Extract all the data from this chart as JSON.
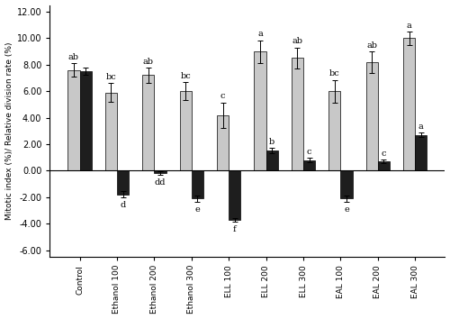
{
  "categories": [
    "Control",
    "Ethanol 100",
    "Ethanol 200",
    "Ethanol 300",
    "ELL 100",
    "ELL 200",
    "ELL 300",
    "EAL 100",
    "EAL 200",
    "EAL 300"
  ],
  "light_bars": [
    7.6,
    5.9,
    7.2,
    6.0,
    4.2,
    9.0,
    8.5,
    6.0,
    8.2,
    10.0
  ],
  "dark_bars": [
    7.5,
    -1.8,
    -0.2,
    -2.1,
    -3.7,
    1.5,
    0.8,
    -2.1,
    0.7,
    2.7
  ],
  "light_errors": [
    0.5,
    0.7,
    0.55,
    0.7,
    0.95,
    0.85,
    0.8,
    0.85,
    0.8,
    0.5
  ],
  "dark_errors": [
    0.25,
    0.25,
    0.15,
    0.25,
    0.15,
    0.2,
    0.15,
    0.25,
    0.15,
    0.15
  ],
  "light_labels": [
    "ab",
    "bc",
    "ab",
    "bc",
    "c",
    "a",
    "ab",
    "bc",
    "ab",
    "a"
  ],
  "dark_labels": [
    "",
    "d",
    "dd",
    "e",
    "f",
    "b",
    "c",
    "e",
    "c",
    "a"
  ],
  "light_color": "#c8c8c8",
  "dark_color": "#1e1e1e",
  "ylabel": "Mitotic index (%)/ Relative division rate (%)",
  "ylim": [
    -6.5,
    12.5
  ],
  "yticks": [
    -6.0,
    -4.0,
    -2.0,
    0.0,
    2.0,
    4.0,
    6.0,
    8.0,
    10.0,
    12.0
  ],
  "bar_width": 0.32,
  "figsize": [
    5.0,
    3.54
  ],
  "dpi": 100
}
